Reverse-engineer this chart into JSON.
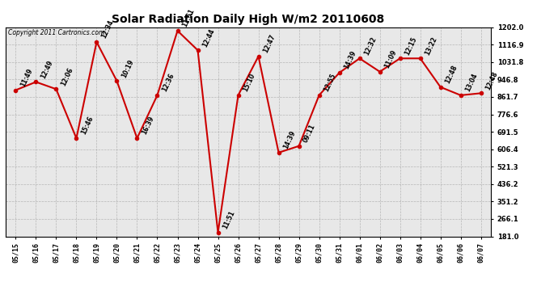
{
  "title": "Solar Radiation Daily High W/m2 20110608",
  "copyright": "Copyright 2011 Cartronics.com",
  "background_color": "#ffffff",
  "plot_bg_color": "#e8e8e8",
  "line_color": "#cc0000",
  "marker_color": "#cc0000",
  "grid_color": "#aaaaaa",
  "ymin": 181.0,
  "ymax": 1202.0,
  "yticks": [
    181.0,
    266.1,
    351.2,
    436.2,
    521.3,
    606.4,
    691.5,
    776.6,
    861.7,
    946.8,
    1031.8,
    1116.9,
    1202.0
  ],
  "dates": [
    "05/15",
    "05/16",
    "05/17",
    "05/18",
    "05/19",
    "05/20",
    "05/21",
    "05/22",
    "05/23",
    "05/24",
    "05/25",
    "05/26",
    "05/27",
    "05/28",
    "05/29",
    "05/30",
    "05/31",
    "06/01",
    "06/02",
    "06/03",
    "06/04",
    "06/05",
    "06/06",
    "06/07"
  ],
  "values": [
    895,
    935,
    900,
    660,
    1130,
    940,
    660,
    870,
    1185,
    1090,
    200,
    870,
    1060,
    590,
    622,
    870,
    980,
    1050,
    985,
    1050,
    1050,
    910,
    870,
    880
  ],
  "time_labels": [
    "11:49",
    "12:49",
    "12:06",
    "15:46",
    "12:34",
    "10:19",
    "16:39",
    "12:36",
    "11:51",
    "12:44",
    "11:51",
    "15:10",
    "12:47",
    "14:39",
    "09:11",
    "12:55",
    "14:39",
    "12:32",
    "11:09",
    "12:15",
    "13:22",
    "12:48",
    "13:04",
    "12:48"
  ],
  "title_fontsize": 10,
  "tick_fontsize": 6,
  "annot_fontsize": 5.5
}
